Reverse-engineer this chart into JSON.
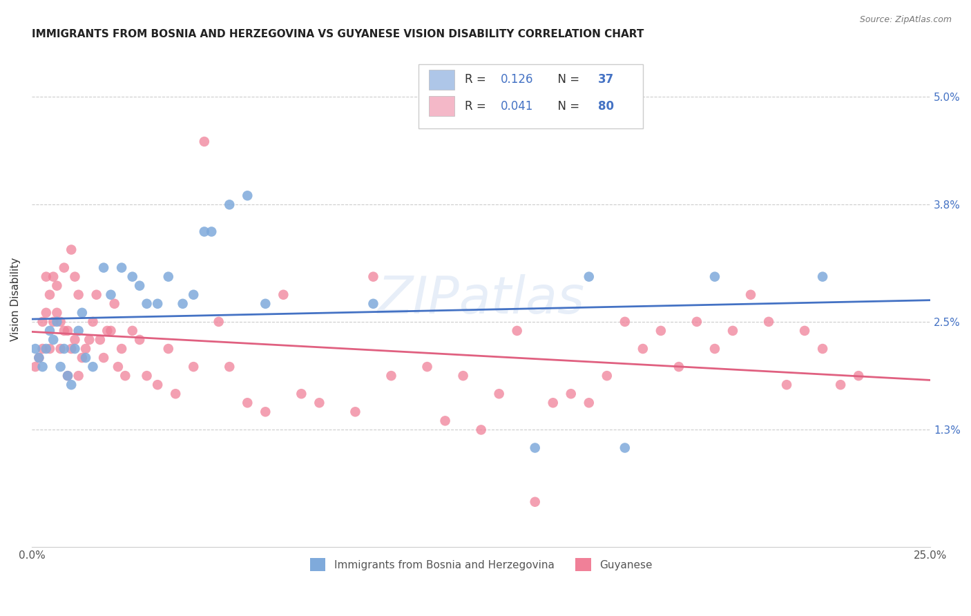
{
  "title": "IMMIGRANTS FROM BOSNIA AND HERZEGOVINA VS GUYANESE VISION DISABILITY CORRELATION CHART",
  "source": "Source: ZipAtlas.com",
  "ylabel": "Vision Disability",
  "xlim": [
    0.0,
    0.25
  ],
  "ylim": [
    0.0,
    0.055
  ],
  "xtick_labels": [
    "0.0%",
    "25.0%"
  ],
  "xtick_positions": [
    0.0,
    0.25
  ],
  "ytick_labels": [
    "1.3%",
    "2.5%",
    "3.8%",
    "5.0%"
  ],
  "ytick_positions": [
    0.013,
    0.025,
    0.038,
    0.05
  ],
  "legend_color_1": "#aec6e8",
  "legend_color_2": "#f4b8c8",
  "dot_color_blue": "#7faadb",
  "dot_color_pink": "#f08098",
  "line_color_blue": "#4472c4",
  "line_color_pink": "#e06080",
  "watermark": "ZIPatlas",
  "bottom_label_blue": "Immigrants from Bosnia and Herzegovina",
  "bottom_label_pink": "Guyanese",
  "blue_x": [
    0.001,
    0.002,
    0.003,
    0.004,
    0.005,
    0.006,
    0.007,
    0.008,
    0.009,
    0.01,
    0.011,
    0.012,
    0.013,
    0.014,
    0.015,
    0.017,
    0.02,
    0.022,
    0.025,
    0.028,
    0.03,
    0.032,
    0.035,
    0.038,
    0.042,
    0.045,
    0.048,
    0.05,
    0.055,
    0.06,
    0.065,
    0.095,
    0.14,
    0.155,
    0.165,
    0.19,
    0.22
  ],
  "blue_y": [
    0.022,
    0.021,
    0.02,
    0.022,
    0.024,
    0.023,
    0.025,
    0.02,
    0.022,
    0.019,
    0.018,
    0.022,
    0.024,
    0.026,
    0.021,
    0.02,
    0.031,
    0.028,
    0.031,
    0.03,
    0.029,
    0.027,
    0.027,
    0.03,
    0.027,
    0.028,
    0.035,
    0.035,
    0.038,
    0.039,
    0.027,
    0.027,
    0.011,
    0.03,
    0.011,
    0.03,
    0.03
  ],
  "pink_x": [
    0.001,
    0.002,
    0.003,
    0.003,
    0.004,
    0.004,
    0.005,
    0.005,
    0.006,
    0.006,
    0.007,
    0.007,
    0.008,
    0.008,
    0.009,
    0.009,
    0.01,
    0.01,
    0.011,
    0.011,
    0.012,
    0.012,
    0.013,
    0.013,
    0.014,
    0.015,
    0.016,
    0.017,
    0.018,
    0.019,
    0.02,
    0.021,
    0.022,
    0.023,
    0.024,
    0.025,
    0.026,
    0.028,
    0.03,
    0.032,
    0.035,
    0.038,
    0.04,
    0.045,
    0.048,
    0.052,
    0.055,
    0.06,
    0.065,
    0.07,
    0.075,
    0.08,
    0.09,
    0.095,
    0.1,
    0.11,
    0.115,
    0.12,
    0.125,
    0.13,
    0.135,
    0.14,
    0.145,
    0.15,
    0.155,
    0.16,
    0.165,
    0.17,
    0.175,
    0.18,
    0.185,
    0.19,
    0.195,
    0.2,
    0.205,
    0.21,
    0.215,
    0.22,
    0.225,
    0.23
  ],
  "pink_y": [
    0.02,
    0.021,
    0.022,
    0.025,
    0.026,
    0.03,
    0.022,
    0.028,
    0.025,
    0.03,
    0.026,
    0.029,
    0.025,
    0.022,
    0.031,
    0.024,
    0.024,
    0.019,
    0.022,
    0.033,
    0.023,
    0.03,
    0.019,
    0.028,
    0.021,
    0.022,
    0.023,
    0.025,
    0.028,
    0.023,
    0.021,
    0.024,
    0.024,
    0.027,
    0.02,
    0.022,
    0.019,
    0.024,
    0.023,
    0.019,
    0.018,
    0.022,
    0.017,
    0.02,
    0.045,
    0.025,
    0.02,
    0.016,
    0.015,
    0.028,
    0.017,
    0.016,
    0.015,
    0.03,
    0.019,
    0.02,
    0.014,
    0.019,
    0.013,
    0.017,
    0.024,
    0.005,
    0.016,
    0.017,
    0.016,
    0.019,
    0.025,
    0.022,
    0.024,
    0.02,
    0.025,
    0.022,
    0.024,
    0.028,
    0.025,
    0.018,
    0.024,
    0.022,
    0.018,
    0.019
  ],
  "blue_R": 0.126,
  "pink_R": 0.041,
  "blue_N": 37,
  "pink_N": 80
}
